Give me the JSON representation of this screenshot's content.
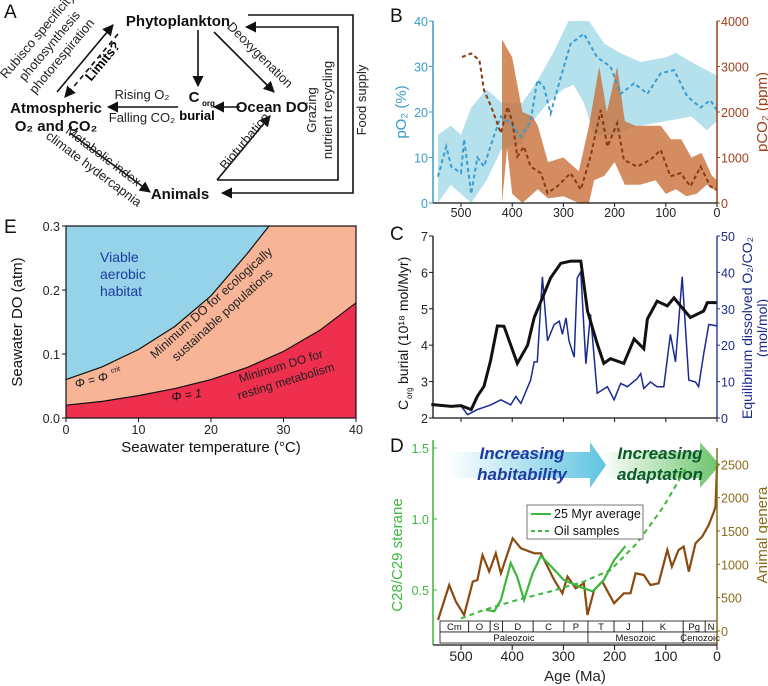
{
  "panels": {
    "a": "A",
    "b": "B",
    "c": "C",
    "d": "D",
    "e": "E"
  },
  "diagram": {
    "phytoplankton": "Phytoplankton",
    "atmospheric_1": "Atmospheric",
    "atmospheric_2": "O₂ and CO₂",
    "corg_c": "C",
    "corg_sub": "org",
    "corg_burial": "burial",
    "ocean_do": "Ocean DO",
    "animals": "Animals",
    "rubisco_lines": [
      "Rubisco specificity",
      "photosynthesis",
      "photorespiration"
    ],
    "limits": "Limits?",
    "rising_o2": "Rising O₂",
    "falling_co2": "Falling CO₂",
    "deoxygenation": "Deoxygenation",
    "metabolic_lines": [
      "Metabolic index",
      "climate hydercapnia"
    ],
    "bioturbation": "Bioturbation",
    "grazing_lines": [
      "Grazing",
      "nutrient recycling"
    ],
    "food_supply": "Food supply"
  },
  "chart_data": [
    {
      "panel": "B",
      "type": "line",
      "xlim": [
        555,
        0
      ],
      "xticks": [
        "500",
        "400",
        "300",
        "200",
        "100",
        "0"
      ],
      "y_left": {
        "label": "pO₂ (%)",
        "lim": [
          0,
          40
        ],
        "ticks": [
          "0",
          "10",
          "20",
          "30",
          "40"
        ],
        "color": "#3a9cc8"
      },
      "y_right": {
        "label": "pCO₂ (ppm)",
        "lim": [
          0,
          4000
        ],
        "ticks": [
          "0",
          "1000",
          "2000",
          "3000",
          "4000"
        ],
        "color": "#a0401a"
      },
      "series": [
        {
          "axis": "left",
          "style": "dashed",
          "color": "#3a9cd0",
          "x": [
            545,
            529,
            519,
            500,
            494,
            480,
            468,
            455,
            435,
            422,
            403,
            383,
            364,
            351,
            338,
            325,
            305,
            286,
            260,
            234,
            208,
            188,
            162,
            136,
            110,
            84,
            58,
            32,
            13,
            0
          ],
          "y": [
            5.8,
            12.4,
            8,
            6.6,
            14,
            2,
            10,
            8,
            15,
            19,
            17.5,
            14.6,
            18,
            27,
            25.5,
            19.7,
            27.7,
            35,
            37.2,
            32,
            30,
            24,
            26.3,
            24,
            28.5,
            29.2,
            23.4,
            21,
            22.6,
            20.4
          ],
          "band_x": [
            545,
            520,
            500,
            480,
            450,
            420,
            380,
            350,
            320,
            290,
            250,
            220,
            190,
            150,
            100,
            80,
            50,
            0
          ],
          "band_hi": [
            15,
            17,
            15,
            21,
            25,
            22,
            22,
            27,
            33,
            40,
            40,
            35,
            33,
            31,
            32,
            33,
            31,
            28
          ],
          "band_lo_x": [
            545,
            520,
            500,
            480,
            450,
            420,
            380,
            360,
            330,
            300,
            280,
            260,
            240,
            200,
            180,
            150,
            100,
            50,
            20,
            0
          ],
          "band_lo": [
            0,
            4,
            2,
            0,
            5,
            12,
            13,
            18,
            22,
            25,
            26,
            22,
            15,
            15,
            16,
            17,
            18,
            19,
            16,
            18
          ],
          "band_color": "#a8dcea"
        },
        {
          "axis": "right",
          "style": "dashed",
          "color": "#8a3a10",
          "x": [
            498,
            480,
            464,
            455,
            441,
            422,
            409,
            399,
            390,
            377,
            364,
            344,
            331,
            312,
            286,
            266,
            247,
            227,
            214,
            195,
            182,
            156,
            130,
            110,
            91,
            71,
            52,
            32,
            13,
            0
          ],
          "y": [
            3212,
            3285,
            3140,
            2480,
            2117,
            1533,
            2117,
            1752,
            1020,
            1240,
            800,
            657,
            219,
            365,
            657,
            292,
            1020,
            2044,
            1240,
            1752,
            950,
            800,
            950,
            1168,
            584,
            657,
            365,
            800,
            365,
            292
          ],
          "band_x": [
            420,
            400,
            380,
            360,
            350,
            330,
            300,
            270,
            250,
            230,
            215,
            195,
            180,
            160,
            130,
            110,
            90,
            70,
            50,
            30,
            10,
            0
          ],
          "band_hi": [
            3600,
            3200,
            2000,
            1900,
            1700,
            900,
            1000,
            700,
            1700,
            3000,
            2000,
            3000,
            1800,
            1700,
            1700,
            1700,
            1400,
            1400,
            1000,
            1100,
            600,
            500
          ],
          "band_lo_x": [
            420,
            410,
            400,
            380,
            350,
            330,
            300,
            270,
            250,
            240,
            220,
            200,
            180,
            150,
            120,
            100,
            80,
            60,
            40,
            20,
            0
          ],
          "band_lo": [
            0,
            1200,
            200,
            0,
            300,
            100,
            150,
            0,
            0,
            500,
            600,
            900,
            400,
            400,
            500,
            200,
            300,
            150,
            200,
            400,
            250
          ],
          "band_color": "#c8703a"
        }
      ]
    },
    {
      "panel": "C",
      "type": "line",
      "xlim": [
        555,
        0
      ],
      "y_left": {
        "label_main": "C",
        "label_sub": "org",
        "label_rest": " burial (10¹⁸ mol/Myr)",
        "lim": [
          2,
          7
        ],
        "ticks": [
          "2",
          "3",
          "4",
          "5",
          "6",
          "7"
        ],
        "color": "#111111"
      },
      "y_right": {
        "label_1": "Equilibrium dissolved O₂/CO₂",
        "label_2": "(mol/mol)",
        "lim": [
          0,
          50
        ],
        "ticks": [
          "0",
          "10",
          "20",
          "30",
          "40",
          "50"
        ],
        "color": "#1c2a8a"
      },
      "series": [
        {
          "axis": "left",
          "color": "#111111",
          "x": [
            558,
            519,
            500,
            480,
            468,
            455,
            442,
            429,
            416,
            390,
            370,
            357,
            344,
            325,
            305,
            286,
            266,
            253,
            234,
            221,
            208,
            182,
            162,
            143,
            136,
            117,
            97,
            84,
            71,
            52,
            26,
            19,
            0
          ],
          "y": [
            2.37,
            2.32,
            2.34,
            2.23,
            2.6,
            2.87,
            3.59,
            4.53,
            4.52,
            3.5,
            4.0,
            4.76,
            5.2,
            5.85,
            6.25,
            6.31,
            6.31,
            4.94,
            4.04,
            3.5,
            3.63,
            3.5,
            4.17,
            3.9,
            4.72,
            5.21,
            5.08,
            5.3,
            5.08,
            4.76,
            4.94,
            5.17,
            5.17
          ]
        },
        {
          "axis": "right",
          "color": "#1a2a90",
          "x": [
            500,
            487,
            468,
            442,
            422,
            403,
            393,
            383,
            364,
            357,
            351,
            341,
            331,
            318,
            308,
            302,
            295,
            289,
            279,
            273,
            266,
            256,
            247,
            234,
            214,
            201,
            188,
            175,
            156,
            149,
            143,
            130,
            117,
            104,
            91,
            81,
            68,
            55,
            42,
            36,
            26,
            16,
            0
          ],
          "y": [
            3.3,
            0.9,
            2.3,
            3.6,
            5,
            3.6,
            5.9,
            4,
            10.4,
            15.4,
            15.4,
            38.8,
            21.2,
            25.7,
            26.6,
            23,
            27.5,
            21.2,
            16.7,
            38.4,
            40.2,
            14.9,
            28.5,
            6.8,
            8.6,
            5,
            9.5,
            8.6,
            10.8,
            12.2,
            8.1,
            9.9,
            8.6,
            8.6,
            23,
            15.4,
            38.8,
            10.4,
            9.9,
            8.6,
            17.6,
            25.7,
            25.3
          ]
        }
      ]
    },
    {
      "panel": "D",
      "type": "line",
      "xlim": [
        555,
        0
      ],
      "xticks": [
        "500",
        "400",
        "300",
        "200",
        "100",
        "0"
      ],
      "xlabel": "Age (Ma)",
      "y_left": {
        "label": "C28/C29 sterane",
        "ticks": [
          "0.5",
          "1.0",
          "1.5"
        ],
        "color": "#3cb83c"
      },
      "y_right": {
        "label": "Animal genera",
        "ticks": [
          "0",
          "500",
          "1000",
          "1500",
          "2000",
          "2500"
        ],
        "color": "#8a6a1a"
      },
      "arrows": [
        {
          "line1": "Increasing",
          "line2": "habitability",
          "color": "#1e3aa0",
          "fill": "#5ec4e0"
        },
        {
          "line1": "Increasing",
          "line2": "adaptation",
          "color": "#0a5a2a",
          "fill": "#6cc46c"
        }
      ],
      "legend": [
        "25 Myr average",
        "Oil samples"
      ],
      "series": [
        {
          "name": "25 Myr average",
          "axis": "left",
          "style": "solid",
          "color": "#3cb83c",
          "x": [
            451,
            435,
            422,
            403,
            390,
            377,
            360,
            344,
            325,
            299,
            266,
            243,
            221,
            201,
            179
          ],
          "y": [
            0.36,
            0.35,
            0.43,
            0.69,
            0.59,
            0.43,
            0.62,
            0.74,
            0.67,
            0.57,
            0.52,
            0.49,
            0.57,
            0.71,
            0.81
          ]
        },
        {
          "name": "Oil samples",
          "axis": "left",
          "style": "dashed",
          "color": "#3cb83c",
          "x": [
            500,
            455,
            390,
            325,
            260,
            208,
            156,
            104,
            62
          ],
          "y": [
            0.3,
            0.36,
            0.43,
            0.49,
            0.56,
            0.64,
            0.83,
            1.09,
            1.35
          ]
        },
        {
          "axis": "right",
          "style": "solid",
          "color": "#8a4a10",
          "x": [
            545,
            523,
            510,
            494,
            477,
            468,
            458,
            445,
            432,
            422,
            399,
            383,
            357,
            344,
            318,
            302,
            292,
            276,
            260,
            253,
            240,
            224,
            201,
            182,
            169,
            159,
            143,
            130,
            114,
            97,
            88,
            75,
            65,
            55,
            42,
            29,
            16,
            6,
            3,
            0
          ],
          "y": [
            165,
            690,
            440,
            240,
            740,
            765,
            1140,
            890,
            1165,
            865,
            1390,
            1240,
            1165,
            1165,
            765,
            565,
            815,
            640,
            715,
            240,
            615,
            740,
            415,
            565,
            565,
            865,
            840,
            690,
            715,
            1215,
            965,
            1215,
            1265,
            890,
            1315,
            1415,
            1590,
            1790,
            1865,
            2465
          ]
        }
      ],
      "periods": [
        {
          "name": "Cm",
          "start": 541,
          "end": 485
        },
        {
          "name": "O",
          "start": 485,
          "end": 443
        },
        {
          "name": "S",
          "start": 443,
          "end": 419
        },
        {
          "name": "D",
          "start": 419,
          "end": 359
        },
        {
          "name": "C",
          "start": 359,
          "end": 299
        },
        {
          "name": "P",
          "start": 299,
          "end": 252
        },
        {
          "name": "T",
          "start": 252,
          "end": 201
        },
        {
          "name": "J",
          "start": 201,
          "end": 145
        },
        {
          "name": "K",
          "start": 145,
          "end": 66
        },
        {
          "name": "Pg",
          "start": 66,
          "end": 23
        },
        {
          "name": "N",
          "start": 23,
          "end": 0
        }
      ],
      "eras": [
        {
          "name": "Paleozoic",
          "start": 541,
          "end": 252
        },
        {
          "name": "Mesozoic",
          "start": 252,
          "end": 66
        },
        {
          "name": "Cenozoic",
          "start": 66,
          "end": 0
        }
      ]
    },
    {
      "panel": "E",
      "type": "area",
      "xlabel": "Seawater temperature (°C)",
      "ylabel": "Seawater DO (atm)",
      "xlim": [
        0,
        40
      ],
      "ylim": [
        0,
        0.3
      ],
      "xticks": [
        "0",
        "10",
        "20",
        "30",
        "40"
      ],
      "yticks": [
        "0.0",
        "0.1",
        "0.2",
        "0.3"
      ],
      "curves": [
        {
          "label": "Φ = Φcrit",
          "label_main": "Φ = Φ",
          "label_sup": "crit",
          "x": [
            0,
            5,
            10,
            15,
            20,
            25,
            28
          ],
          "y": [
            0.06,
            0.08,
            0.107,
            0.143,
            0.191,
            0.257,
            0.3
          ]
        },
        {
          "label": "Φ = 1",
          "x": [
            0,
            5,
            10,
            15,
            20,
            25,
            30,
            35,
            40
          ],
          "y": [
            0.02,
            0.026,
            0.035,
            0.046,
            0.06,
            0.079,
            0.104,
            0.137,
            0.18
          ]
        }
      ],
      "regions": [
        {
          "lines": [
            "Viable",
            "aerobic",
            "habitat"
          ],
          "color": "#95d3e8",
          "text_color": "#1e3aa0"
        },
        {
          "lines": [
            "Minimum DO for ecologically",
            "sustainable populations"
          ],
          "color": "#f8b496",
          "text_color": "#222222"
        },
        {
          "lines": [
            "Minimum DO for",
            "resting metabolism"
          ],
          "color": "#ee2f4e",
          "text_color": "#222222"
        }
      ]
    }
  ]
}
